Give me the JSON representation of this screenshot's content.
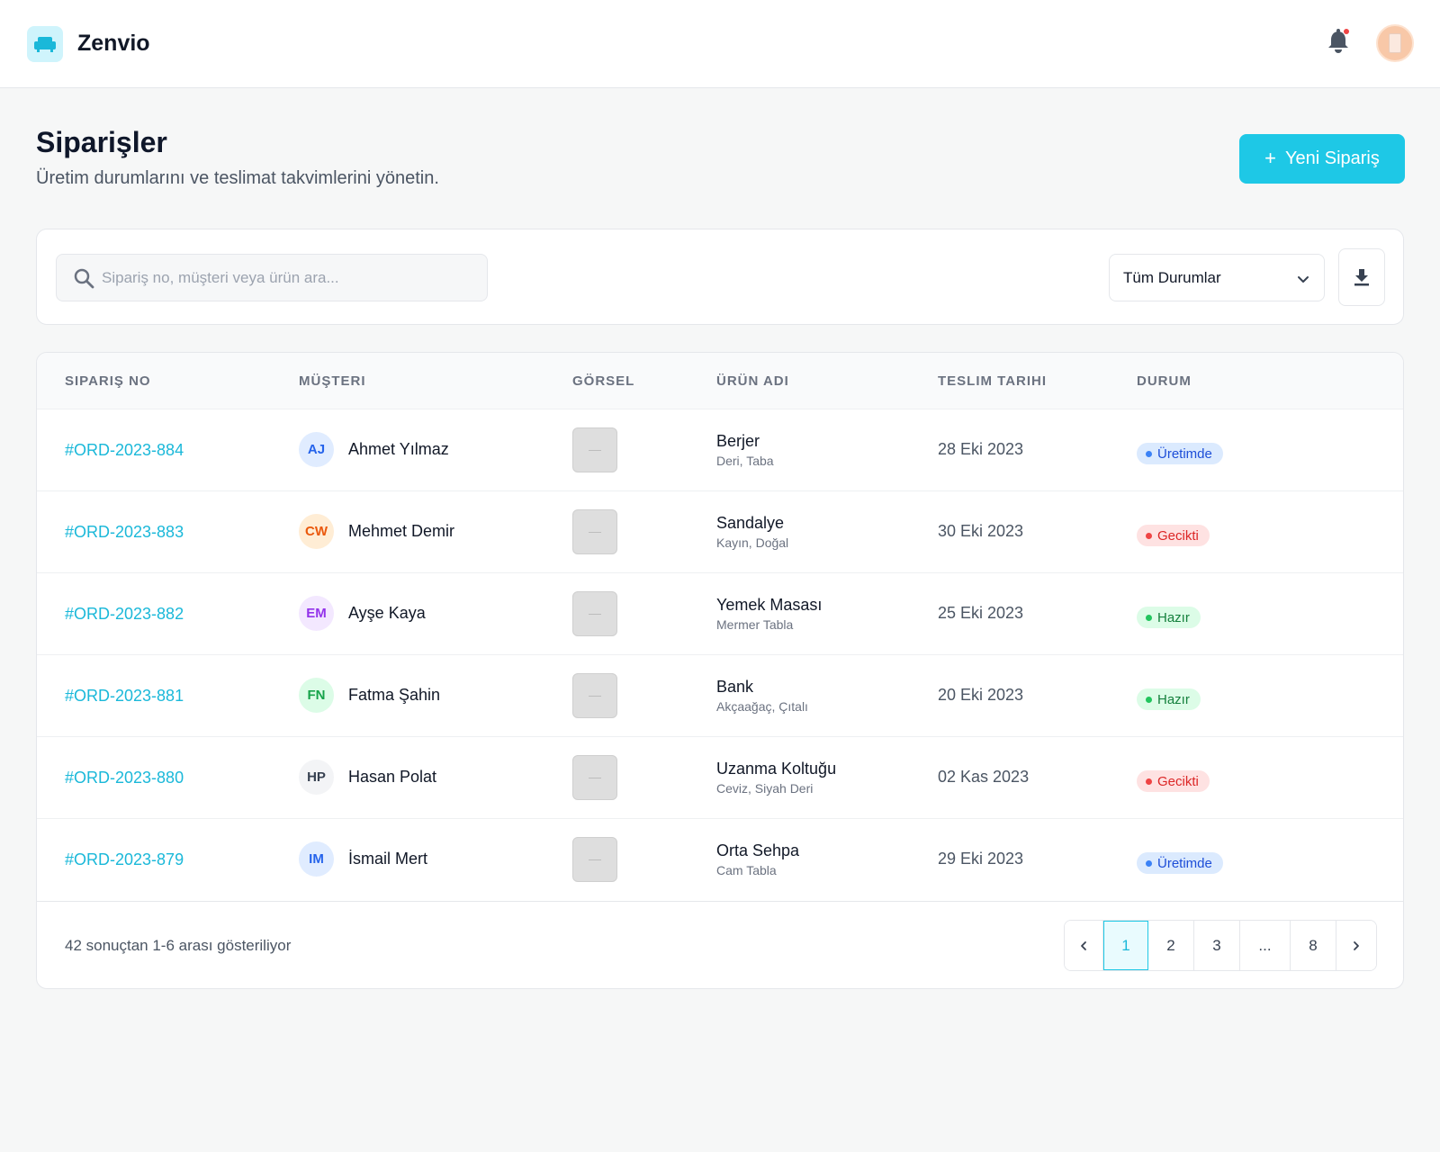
{
  "app": {
    "brand": "Zenvio"
  },
  "header": {
    "title": "Siparişler",
    "subtitle": "Üretim durumlarını ve teslimat takvimlerini yönetin.",
    "new_button": "Yeni Sipariş"
  },
  "filters": {
    "search_placeholder": "Sipariş no, müşteri veya ürün ara...",
    "status_value": "Tüm Durumlar"
  },
  "table": {
    "columns": [
      "SIPARIŞ NO",
      "MÜŞTERI",
      "GÖRSEL",
      "ÜRÜN ADI",
      "TESLIM TARIHI",
      "DURUM"
    ],
    "rows": [
      {
        "order": "#ORD-2023-884",
        "initials": "AJ",
        "customer": "Ahmet Yılmaz",
        "product": "Berjer",
        "detail": "Deri, Taba",
        "date": "28 Eki 2023",
        "status": "Üretimde"
      },
      {
        "order": "#ORD-2023-883",
        "initials": "CW",
        "customer": "Mehmet Demir",
        "product": "Sandalye",
        "detail": "Kayın, Doğal",
        "date": "30 Eki 2023",
        "status": "Gecikti"
      },
      {
        "order": "#ORD-2023-882",
        "initials": "EM",
        "customer": "Ayşe Kaya",
        "product": "Yemek Masası",
        "detail": "Mermer Tabla",
        "date": "25 Eki 2023",
        "status": "Hazır"
      },
      {
        "order": "#ORD-2023-881",
        "initials": "FN",
        "customer": "Fatma Şahin",
        "product": "Bank",
        "detail": "Akçaağaç, Çıtalı",
        "date": "20 Eki 2023",
        "status": "Hazır"
      },
      {
        "order": "#ORD-2023-880",
        "initials": "HP",
        "customer": "Hasan Polat",
        "product": "Uzanma Koltuğu",
        "detail": "Ceviz, Siyah Deri",
        "date": "02 Kas 2023",
        "status": "Gecikti"
      },
      {
        "order": "#ORD-2023-879",
        "initials": "IM",
        "customer": "İsmail Mert",
        "product": "Orta Sehpa",
        "detail": "Cam Tabla",
        "date": "29 Eki 2023",
        "status": "Üretimde"
      }
    ]
  },
  "footer": {
    "result_text": "42 sonuçtan 1-6 arası gösteriliyor",
    "pages": [
      "1",
      "2",
      "3",
      "...",
      "8"
    ],
    "current_page": "1"
  },
  "colors": {
    "accent": "#1ec8e6",
    "link": "#1ab8d9",
    "production": "#3b82f6",
    "late": "#ef4444",
    "ready": "#22c55e"
  },
  "icons": [
    "sofa-icon",
    "bell-icon",
    "search-icon",
    "chevron-down-icon",
    "download-icon",
    "chevron-left-icon",
    "chevron-right-icon",
    "plus-icon"
  ]
}
